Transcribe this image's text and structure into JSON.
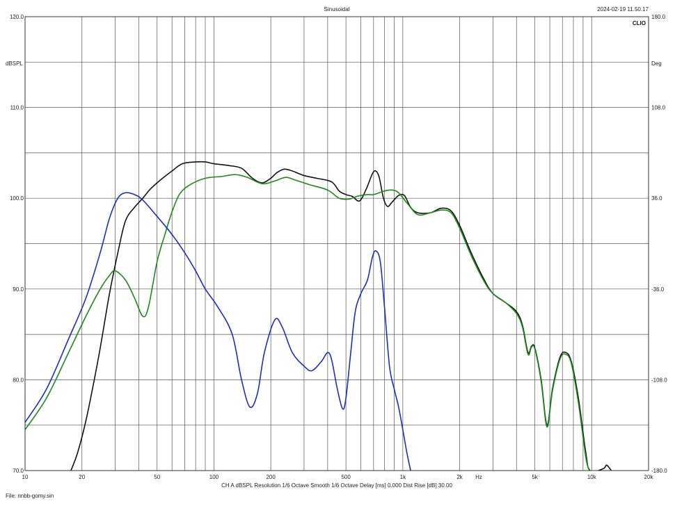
{
  "header": {
    "title": "Sinusoidal",
    "timestamp": "2024-02-19 11.50.17",
    "brand": "CLIO"
  },
  "footer": {
    "settings": "CH A   dBSPL   Resolution 1/6 Octave   Smooth 1/6 Octave   Delay [ms] 0.000   Dist Rise [dB] 30.00",
    "file": "File: nnbb-gomy.sin"
  },
  "chart_data": {
    "type": "line",
    "x_scale": "log",
    "xlim": [
      10,
      20000
    ],
    "ylim": [
      70,
      120
    ],
    "y2lim": [
      -180,
      180
    ],
    "grid": true,
    "ylabel": "dBSPL",
    "y2label": "Deg",
    "xunit": "Hz",
    "x_ticks": [
      {
        "v": 10,
        "label": "10"
      },
      {
        "v": 20,
        "label": "20"
      },
      {
        "v": 50,
        "label": "50"
      },
      {
        "v": 100,
        "label": "100"
      },
      {
        "v": 200,
        "label": "200"
      },
      {
        "v": 500,
        "label": "500"
      },
      {
        "v": 1000,
        "label": "1k"
      },
      {
        "v": 2000,
        "label": "2k"
      },
      {
        "v": 5000,
        "label": "5k"
      },
      {
        "v": 10000,
        "label": "10k"
      },
      {
        "v": 20000,
        "label": "20k"
      }
    ],
    "y_ticks": [
      {
        "v": 120,
        "label": "120.0"
      },
      {
        "v": 110,
        "label": "110.0"
      },
      {
        "v": 100,
        "label": "100.0"
      },
      {
        "v": 90,
        "label": "90.0"
      },
      {
        "v": 80,
        "label": "80.0"
      },
      {
        "v": 70,
        "label": "70.0"
      }
    ],
    "y2_ticks": [
      {
        "v": 180,
        "label": "180.0"
      },
      {
        "v": 108,
        "label": "108.0"
      },
      {
        "v": 36,
        "label": "36.0"
      },
      {
        "v": -36,
        "label": "-36.0"
      },
      {
        "v": -108,
        "label": "-108.0"
      },
      {
        "v": -180,
        "label": "-180.0"
      }
    ],
    "series": [
      {
        "color": "#111111",
        "points": [
          [
            17.5,
            70
          ],
          [
            19,
            72
          ],
          [
            21,
            75.5
          ],
          [
            23,
            79.5
          ],
          [
            25,
            83.5
          ],
          [
            28,
            89.5
          ],
          [
            31,
            94
          ],
          [
            34,
            97.5
          ],
          [
            38,
            99
          ],
          [
            42,
            100
          ],
          [
            46,
            101
          ],
          [
            52,
            102
          ],
          [
            60,
            103
          ],
          [
            68,
            103.8
          ],
          [
            80,
            104
          ],
          [
            90,
            104
          ],
          [
            100,
            103.8
          ],
          [
            120,
            103.6
          ],
          [
            140,
            103.3
          ],
          [
            160,
            102.2
          ],
          [
            180,
            101.7
          ],
          [
            200,
            102.2
          ],
          [
            215,
            102.8
          ],
          [
            235,
            103.2
          ],
          [
            260,
            103
          ],
          [
            300,
            102.5
          ],
          [
            350,
            102.2
          ],
          [
            420,
            101.8
          ],
          [
            460,
            100.8
          ],
          [
            500,
            100.4
          ],
          [
            540,
            100.2
          ],
          [
            590,
            99.7
          ],
          [
            640,
            101
          ],
          [
            690,
            102.7
          ],
          [
            720,
            103
          ],
          [
            750,
            102.3
          ],
          [
            790,
            100
          ],
          [
            830,
            99.1
          ],
          [
            880,
            99.6
          ],
          [
            950,
            100.3
          ],
          [
            1020,
            100.3
          ],
          [
            1100,
            99
          ],
          [
            1200,
            98.4
          ],
          [
            1400,
            98.4
          ],
          [
            1600,
            98.9
          ],
          [
            1800,
            98.6
          ],
          [
            2000,
            97
          ],
          [
            2300,
            94
          ],
          [
            2700,
            91
          ],
          [
            3000,
            89.5
          ],
          [
            3500,
            88.5
          ],
          [
            4000,
            87.5
          ],
          [
            4300,
            86
          ],
          [
            4600,
            83
          ],
          [
            4800,
            83.7
          ],
          [
            5000,
            83.5
          ],
          [
            5400,
            80
          ],
          [
            5800,
            75
          ],
          [
            6200,
            79
          ],
          [
            6800,
            82.5
          ],
          [
            7300,
            83
          ],
          [
            7800,
            82
          ],
          [
            8500,
            78
          ],
          [
            9300,
            72
          ],
          [
            9800,
            70
          ],
          [
            11500,
            70.2
          ],
          [
            12000,
            70.6
          ],
          [
            12700,
            70
          ]
        ]
      },
      {
        "color": "#1a8a1a",
        "points": [
          [
            10,
            74.5
          ],
          [
            13,
            78
          ],
          [
            17,
            83
          ],
          [
            21,
            87
          ],
          [
            25,
            90
          ],
          [
            28,
            91.5
          ],
          [
            30,
            92
          ],
          [
            34,
            91
          ],
          [
            38,
            89
          ],
          [
            42,
            87
          ],
          [
            45,
            88
          ],
          [
            50,
            93
          ],
          [
            55,
            96
          ],
          [
            60,
            98.5
          ],
          [
            66,
            100.5
          ],
          [
            75,
            101.5
          ],
          [
            90,
            102.2
          ],
          [
            110,
            102.4
          ],
          [
            130,
            102.6
          ],
          [
            150,
            102.3
          ],
          [
            180,
            101.6
          ],
          [
            210,
            101.9
          ],
          [
            240,
            102.3
          ],
          [
            270,
            102
          ],
          [
            320,
            101.5
          ],
          [
            400,
            100.9
          ],
          [
            460,
            100
          ],
          [
            520,
            99.9
          ],
          [
            570,
            100.2
          ],
          [
            650,
            100.4
          ],
          [
            700,
            100.4
          ],
          [
            800,
            100.8
          ],
          [
            880,
            100.9
          ],
          [
            950,
            100.6
          ],
          [
            1050,
            99.5
          ],
          [
            1200,
            98.2
          ],
          [
            1400,
            98.4
          ],
          [
            1600,
            98.7
          ],
          [
            1800,
            98.4
          ],
          [
            2000,
            96.7
          ],
          [
            2300,
            93.7
          ],
          [
            2700,
            90.8
          ],
          [
            3000,
            89.5
          ],
          [
            3500,
            88.5
          ],
          [
            4000,
            87.3
          ],
          [
            4300,
            85.8
          ],
          [
            4600,
            82.8
          ],
          [
            4800,
            83.6
          ],
          [
            5000,
            83.4
          ],
          [
            5400,
            79.8
          ],
          [
            5800,
            74.8
          ],
          [
            6200,
            78.8
          ],
          [
            6800,
            82.3
          ],
          [
            7300,
            82.8
          ],
          [
            7800,
            81.8
          ],
          [
            8500,
            77.5
          ],
          [
            9300,
            71.5
          ],
          [
            9700,
            70
          ]
        ]
      },
      {
        "color": "#1a2bd0",
        "points": [
          [
            10,
            75.3
          ],
          [
            13,
            79
          ],
          [
            17,
            84.5
          ],
          [
            21,
            89
          ],
          [
            25,
            94
          ],
          [
            28,
            97.8
          ],
          [
            31,
            100
          ],
          [
            34,
            100.6
          ],
          [
            38,
            100.4
          ],
          [
            42,
            99.8
          ],
          [
            50,
            98
          ],
          [
            60,
            96
          ],
          [
            70,
            94
          ],
          [
            80,
            92
          ],
          [
            90,
            90
          ],
          [
            105,
            88
          ],
          [
            125,
            85
          ],
          [
            140,
            80
          ],
          [
            155,
            77
          ],
          [
            170,
            78.5
          ],
          [
            185,
            83
          ],
          [
            210,
            86.6
          ],
          [
            230,
            85.8
          ],
          [
            260,
            83
          ],
          [
            300,
            81.5
          ],
          [
            330,
            81
          ],
          [
            370,
            82
          ],
          [
            400,
            83
          ],
          [
            420,
            82.2
          ],
          [
            450,
            79
          ],
          [
            480,
            76.8
          ],
          [
            500,
            78
          ],
          [
            530,
            83
          ],
          [
            560,
            87.5
          ],
          [
            600,
            89.5
          ],
          [
            650,
            91
          ],
          [
            690,
            93.5
          ],
          [
            720,
            94.2
          ],
          [
            760,
            93
          ],
          [
            800,
            88
          ],
          [
            850,
            81.5
          ],
          [
            900,
            79
          ],
          [
            950,
            77
          ],
          [
            1000,
            74.5
          ],
          [
            1050,
            72
          ],
          [
            1100,
            70
          ]
        ]
      }
    ]
  }
}
